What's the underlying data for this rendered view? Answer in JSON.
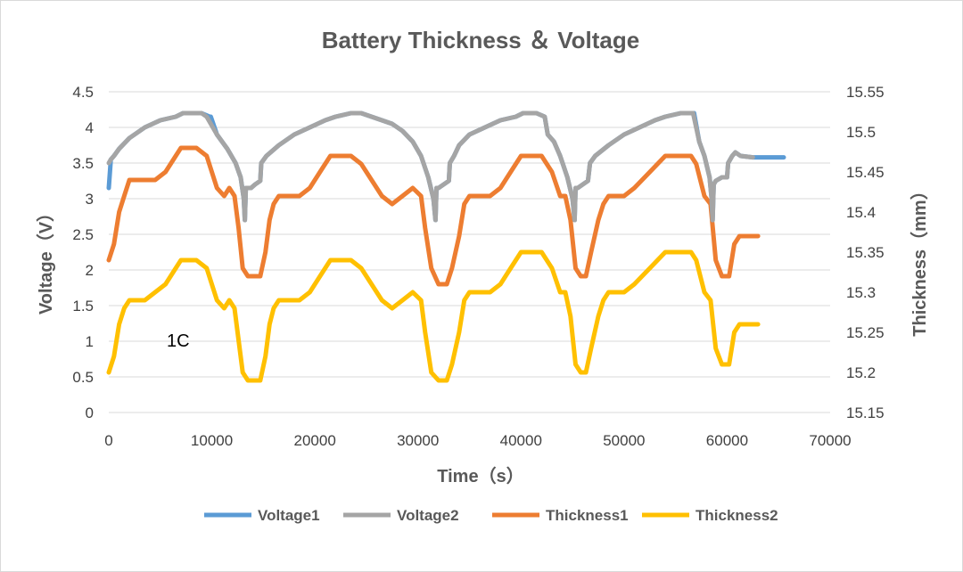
{
  "chart_data": {
    "type": "line",
    "title": "Battery Thickness ＆ Voltage",
    "xlabel": "Time（s）",
    "ylabel_left": "Voltage（V）",
    "ylabel_right": "Thickness（mm）",
    "xlim": [
      0,
      70000
    ],
    "ylim_left": [
      0,
      4.5
    ],
    "ylim_right": [
      15.15,
      15.55
    ],
    "x_ticks": [
      "0",
      "10000",
      "20000",
      "30000",
      "40000",
      "50000",
      "60000",
      "70000"
    ],
    "y_ticks_left": [
      "0",
      "0.5",
      "1",
      "1.5",
      "2",
      "2.5",
      "3",
      "3.5",
      "4",
      "4.5"
    ],
    "y_ticks_right": [
      "15.15",
      "15.2",
      "15.25",
      "15.3",
      "15.35",
      "15.4",
      "15.45",
      "15.5",
      "15.55"
    ],
    "annotation": "1C",
    "grid": true,
    "legend_position": "bottom",
    "series": [
      {
        "name": "Voltage1",
        "axis": "left",
        "color": "#5B9BD5",
        "x": [
          0,
          200,
          500,
          1000,
          2000,
          3500,
          5000,
          6500,
          7200,
          9000,
          9800,
          9900,
          10500,
          11500,
          12300,
          12800,
          13100,
          13200,
          13300,
          13500,
          13800,
          14200,
          14700,
          14800,
          15300,
          16500,
          18000,
          19500,
          21000,
          22000,
          23500,
          24500,
          25500,
          26500,
          27500,
          28500,
          29500,
          30300,
          31000,
          31500,
          31700,
          31800,
          32000,
          32500,
          33000,
          33100,
          33500,
          34000,
          35000,
          36500,
          38000,
          39500,
          40200,
          41500,
          42300,
          42600,
          43200,
          43800,
          44500,
          45000,
          45200,
          45300,
          45500,
          46000,
          46500,
          46700,
          47200,
          48500,
          50000,
          51500,
          53000,
          54000,
          55500,
          56700,
          56800,
          57300,
          57800,
          58300,
          58500,
          58600,
          58700,
          58900,
          59500,
          60000,
          60100,
          60500,
          60800,
          61300,
          62500,
          65500
        ],
        "y": [
          3.15,
          3.55,
          3.6,
          3.7,
          3.85,
          4.0,
          4.1,
          4.15,
          4.2,
          4.2,
          4.15,
          4.15,
          3.9,
          3.7,
          3.5,
          3.3,
          3.0,
          2.7,
          3.15,
          3.15,
          3.15,
          3.2,
          3.25,
          3.5,
          3.6,
          3.75,
          3.9,
          4.0,
          4.1,
          4.15,
          4.2,
          4.2,
          4.15,
          4.1,
          4.05,
          3.95,
          3.8,
          3.6,
          3.3,
          3.0,
          2.7,
          3.15,
          3.15,
          3.2,
          3.25,
          3.5,
          3.6,
          3.75,
          3.9,
          4.0,
          4.1,
          4.15,
          4.2,
          4.2,
          4.15,
          3.9,
          3.8,
          3.6,
          3.3,
          3.0,
          2.7,
          3.15,
          3.15,
          3.2,
          3.25,
          3.5,
          3.6,
          3.75,
          3.9,
          4.0,
          4.1,
          4.15,
          4.2,
          4.2,
          4.2,
          3.8,
          3.6,
          3.3,
          3.0,
          2.7,
          3.2,
          3.25,
          3.3,
          3.3,
          3.5,
          3.6,
          3.65,
          3.6,
          3.58,
          3.58
        ]
      },
      {
        "name": "Voltage2",
        "axis": "left",
        "color": "#A5A5A5",
        "x": [
          0,
          200,
          500,
          1000,
          2000,
          3500,
          5000,
          6500,
          7200,
          9000,
          9500,
          10500,
          11500,
          12300,
          12800,
          13100,
          13200,
          13300,
          13500,
          13800,
          14200,
          14700,
          14800,
          15300,
          16500,
          18000,
          19500,
          21000,
          22000,
          23500,
          24500,
          25500,
          26500,
          27500,
          28500,
          29500,
          30300,
          31000,
          31500,
          31700,
          31800,
          32000,
          32500,
          33000,
          33100,
          33500,
          34000,
          35000,
          36500,
          38000,
          39500,
          40200,
          41500,
          42300,
          42600,
          43200,
          43800,
          44500,
          45000,
          45200,
          45300,
          45500,
          46000,
          46500,
          46700,
          47200,
          48500,
          50000,
          51500,
          53000,
          54000,
          55500,
          56700,
          57300,
          57800,
          58300,
          58500,
          58600,
          58700,
          58900,
          59500,
          60000,
          60100,
          60500,
          60800,
          61300,
          62500
        ],
        "y": [
          3.5,
          3.55,
          3.6,
          3.7,
          3.85,
          4.0,
          4.1,
          4.15,
          4.2,
          4.2,
          4.15,
          3.9,
          3.7,
          3.5,
          3.3,
          3.0,
          2.7,
          3.15,
          3.15,
          3.15,
          3.2,
          3.25,
          3.5,
          3.6,
          3.75,
          3.9,
          4.0,
          4.1,
          4.15,
          4.2,
          4.2,
          4.15,
          4.1,
          4.05,
          3.95,
          3.8,
          3.6,
          3.3,
          3.0,
          2.7,
          3.15,
          3.15,
          3.2,
          3.25,
          3.5,
          3.6,
          3.75,
          3.9,
          4.0,
          4.1,
          4.15,
          4.2,
          4.2,
          4.15,
          3.9,
          3.8,
          3.6,
          3.3,
          3.0,
          2.7,
          3.15,
          3.15,
          3.2,
          3.25,
          3.5,
          3.6,
          3.75,
          3.9,
          4.0,
          4.1,
          4.15,
          4.2,
          4.2,
          3.8,
          3.6,
          3.3,
          3.0,
          2.7,
          3.2,
          3.25,
          3.3,
          3.3,
          3.5,
          3.6,
          3.65,
          3.6,
          3.58
        ]
      },
      {
        "name": "Thickness1",
        "axis": "right",
        "color": "#ED7D31",
        "x": [
          0,
          500,
          1000,
          1500,
          2000,
          2500,
          3500,
          4500,
          5500,
          6500,
          7000,
          8500,
          9500,
          10500,
          11200,
          11700,
          12200,
          12600,
          13000,
          13500,
          14000,
          14700,
          15200,
          15600,
          16000,
          16500,
          17500,
          18500,
          19500,
          20500,
          21500,
          22500,
          23500,
          24500,
          25500,
          26500,
          27500,
          28500,
          29500,
          30300,
          30700,
          31300,
          32000,
          32800,
          33300,
          34000,
          34500,
          35000,
          36000,
          37000,
          38000,
          39000,
          40000,
          41000,
          42000,
          43000,
          43800,
          44300,
          44800,
          45300,
          45800,
          46300,
          46800,
          47500,
          48000,
          48500,
          49000,
          50000,
          51000,
          52500,
          54000,
          55000,
          56500,
          57000,
          57800,
          58400,
          58900,
          59500,
          60200,
          60700,
          61200,
          63000
        ],
        "y": [
          15.34,
          15.36,
          15.4,
          15.42,
          15.44,
          15.44,
          15.44,
          15.44,
          15.45,
          15.47,
          15.48,
          15.48,
          15.47,
          15.43,
          15.42,
          15.43,
          15.42,
          15.38,
          15.33,
          15.32,
          15.32,
          15.32,
          15.35,
          15.39,
          15.41,
          15.42,
          15.42,
          15.42,
          15.43,
          15.45,
          15.47,
          15.47,
          15.47,
          15.46,
          15.44,
          15.42,
          15.41,
          15.42,
          15.43,
          15.42,
          15.38,
          15.33,
          15.31,
          15.31,
          15.33,
          15.37,
          15.41,
          15.42,
          15.42,
          15.42,
          15.43,
          15.45,
          15.47,
          15.47,
          15.47,
          15.45,
          15.42,
          15.42,
          15.39,
          15.33,
          15.32,
          15.32,
          15.35,
          15.39,
          15.41,
          15.42,
          15.42,
          15.42,
          15.43,
          15.45,
          15.47,
          15.47,
          15.47,
          15.46,
          15.42,
          15.41,
          15.34,
          15.32,
          15.32,
          15.36,
          15.37,
          15.37
        ]
      },
      {
        "name": "Thickness2",
        "axis": "right",
        "color": "#FFC000",
        "x": [
          0,
          500,
          1000,
          1500,
          2000,
          2500,
          3500,
          4500,
          5500,
          6500,
          7000,
          8500,
          9500,
          10500,
          11200,
          11700,
          12200,
          12600,
          13000,
          13500,
          14000,
          14700,
          15200,
          15600,
          16000,
          16500,
          17500,
          18500,
          19500,
          20500,
          21500,
          22500,
          23500,
          24500,
          25500,
          26500,
          27500,
          28500,
          29500,
          30300,
          30700,
          31300,
          32000,
          32800,
          33300,
          34000,
          34500,
          35000,
          36000,
          37000,
          38000,
          39000,
          40000,
          41000,
          42000,
          43000,
          43800,
          44300,
          44800,
          45300,
          45800,
          46300,
          46800,
          47500,
          48000,
          48500,
          49000,
          50000,
          51000,
          52500,
          54000,
          55000,
          56500,
          57000,
          57800,
          58400,
          58900,
          59500,
          60200,
          60700,
          61200,
          63000
        ],
        "y": [
          15.2,
          15.22,
          15.26,
          15.28,
          15.29,
          15.29,
          15.29,
          15.3,
          15.31,
          15.33,
          15.34,
          15.34,
          15.33,
          15.29,
          15.28,
          15.29,
          15.28,
          15.24,
          15.2,
          15.19,
          15.19,
          15.19,
          15.22,
          15.26,
          15.28,
          15.29,
          15.29,
          15.29,
          15.3,
          15.32,
          15.34,
          15.34,
          15.34,
          15.33,
          15.31,
          15.29,
          15.28,
          15.29,
          15.3,
          15.29,
          15.25,
          15.2,
          15.19,
          15.19,
          15.21,
          15.25,
          15.29,
          15.3,
          15.3,
          15.3,
          15.31,
          15.33,
          15.35,
          15.35,
          15.35,
          15.33,
          15.3,
          15.3,
          15.27,
          15.21,
          15.2,
          15.2,
          15.23,
          15.27,
          15.29,
          15.3,
          15.3,
          15.3,
          15.31,
          15.33,
          15.35,
          15.35,
          15.35,
          15.34,
          15.3,
          15.29,
          15.23,
          15.21,
          15.21,
          15.25,
          15.26,
          15.26
        ]
      }
    ]
  }
}
